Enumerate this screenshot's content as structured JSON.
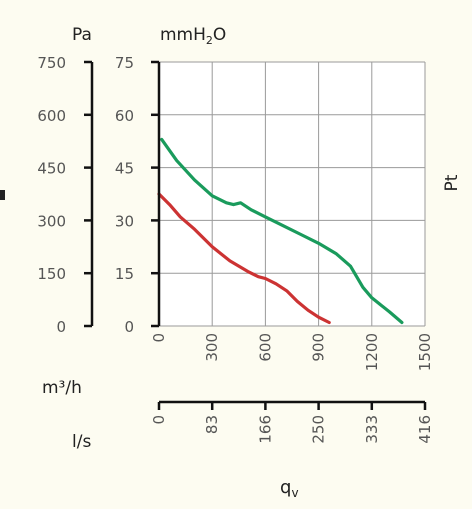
{
  "chart_data": {
    "type": "line",
    "title": "",
    "left_axis": {
      "unit": "Pa",
      "ticks": [
        "750",
        "600",
        "450",
        "300",
        "150",
        "0"
      ],
      "range": [
        0,
        750
      ]
    },
    "inner_axis": {
      "unit_main": "mmH",
      "unit_sub": "2",
      "unit_tail": "O",
      "ticks": [
        "75",
        "60",
        "45",
        "30",
        "15",
        "0"
      ],
      "range": [
        0,
        75
      ]
    },
    "right_label": "Pt",
    "x_axis_m3h": {
      "unit": "m³/h",
      "ticks": [
        "0",
        "300",
        "600",
        "900",
        "1200",
        "1500"
      ],
      "range": [
        0,
        1500
      ]
    },
    "x_axis_ls": {
      "unit": "l/s",
      "ticks": [
        "0",
        "83",
        "166",
        "250",
        "333",
        "416"
      ]
    },
    "xlabel": "q",
    "xlabel_sub": "v",
    "grid": true,
    "series": [
      {
        "color": "#1a9b5c",
        "x": [
          15,
          100,
          200,
          300,
          380,
          420,
          460,
          520,
          600,
          700,
          800,
          900,
          1000,
          1080,
          1150,
          1200,
          1300,
          1370
        ],
        "y": [
          53,
          47,
          41.5,
          37,
          35,
          34.5,
          35,
          33,
          31,
          28.5,
          26,
          23.5,
          20.5,
          17,
          11,
          8,
          4,
          1
        ]
      },
      {
        "color": "#cc3333",
        "x": [
          0,
          60,
          120,
          200,
          300,
          400,
          500,
          560,
          600,
          660,
          720,
          780,
          840,
          900,
          960
        ],
        "y": [
          37.5,
          34.5,
          31,
          27.5,
          22.5,
          18.5,
          15.5,
          14,
          13.5,
          12,
          10,
          7,
          4.5,
          2.5,
          1
        ]
      }
    ]
  }
}
